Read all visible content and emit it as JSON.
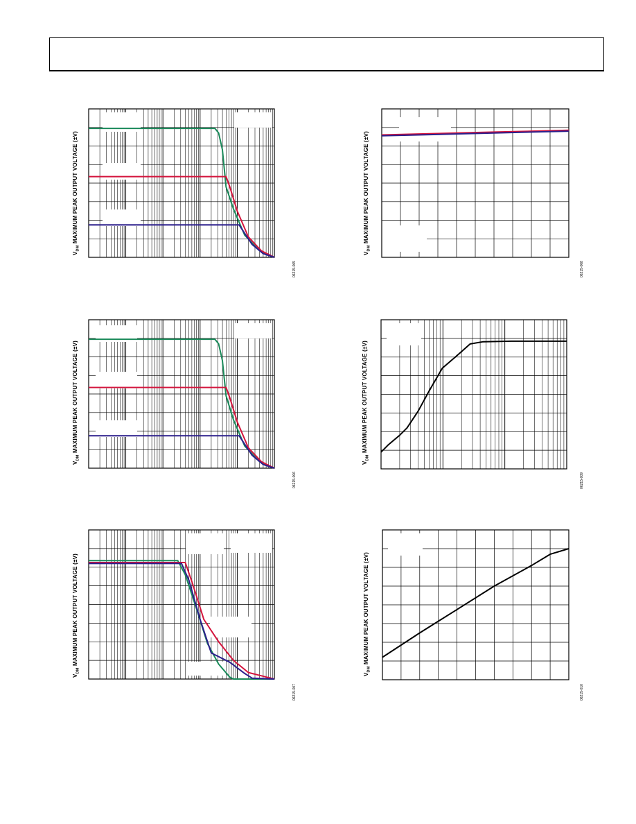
{
  "page": {
    "header_box": ""
  },
  "axis_label": {
    "sub": "DM",
    "rest": " MAXIMUM PEAK OUTPUT VOLTAGE (±V)",
    "prefix": "V"
  },
  "colors": {
    "green": "#1a8a5a",
    "red": "#d4143c",
    "blue": "#2c1f8c",
    "black": "#000000"
  },
  "figure_codes": [
    "06215-005",
    "06215-006",
    "06215-007",
    "06215-008",
    "06215-009",
    "06215-010"
  ],
  "chart_data": [
    {
      "type": "line",
      "scale_x": "log",
      "decades": 5,
      "ylabel": "VDM MAXIMUM PEAK OUTPUT VOLTAGE (±V)",
      "ylim": [
        0,
        8
      ],
      "series": [
        {
          "color": "green",
          "values": [
            [
              0.0,
              6.95
            ],
            [
              0.68,
              6.95
            ],
            [
              0.7,
              6.7
            ],
            [
              0.72,
              5.8
            ],
            [
              0.74,
              3.8
            ],
            [
              0.78,
              2.6
            ],
            [
              0.84,
              1.2
            ],
            [
              0.92,
              0.35
            ],
            [
              1.0,
              0.0
            ]
          ]
        },
        {
          "color": "red",
          "values": [
            [
              0.0,
              4.35
            ],
            [
              0.74,
              4.35
            ],
            [
              0.76,
              3.8
            ],
            [
              0.8,
              2.5
            ],
            [
              0.86,
              1.1
            ],
            [
              0.93,
              0.35
            ],
            [
              1.0,
              0.0
            ]
          ]
        },
        {
          "color": "blue",
          "values": [
            [
              0.0,
              1.75
            ],
            [
              0.81,
              1.75
            ],
            [
              0.83,
              1.45
            ],
            [
              0.88,
              0.7
            ],
            [
              0.94,
              0.2
            ],
            [
              1.0,
              0.0
            ]
          ]
        }
      ]
    },
    {
      "type": "line",
      "scale_x": "log",
      "decades": 5,
      "ylabel": "VDM MAXIMUM PEAK OUTPUT VOLTAGE (±V)",
      "ylim": [
        0,
        8
      ],
      "series": [
        {
          "color": "green",
          "values": [
            [
              0.0,
              6.95
            ],
            [
              0.68,
              6.95
            ],
            [
              0.7,
              6.7
            ],
            [
              0.72,
              5.8
            ],
            [
              0.74,
              3.9
            ],
            [
              0.78,
              2.6
            ],
            [
              0.84,
              1.2
            ],
            [
              0.92,
              0.35
            ],
            [
              1.0,
              0.0
            ]
          ]
        },
        {
          "color": "red",
          "values": [
            [
              0.0,
              4.35
            ],
            [
              0.74,
              4.35
            ],
            [
              0.76,
              3.8
            ],
            [
              0.8,
              2.5
            ],
            [
              0.86,
              1.1
            ],
            [
              0.93,
              0.35
            ],
            [
              1.0,
              0.0
            ]
          ]
        },
        {
          "color": "blue",
          "values": [
            [
              0.0,
              1.75
            ],
            [
              0.81,
              1.75
            ],
            [
              0.83,
              1.45
            ],
            [
              0.88,
              0.7
            ],
            [
              0.94,
              0.2
            ],
            [
              1.0,
              0.0
            ]
          ]
        }
      ]
    },
    {
      "type": "line",
      "scale_x": "log",
      "decades": 5,
      "ylabel": "VDM MAXIMUM PEAK OUTPUT VOLTAGE (±V)",
      "ylim": [
        0,
        8
      ],
      "series": [
        {
          "color": "green",
          "values": [
            [
              0.0,
              6.35
            ],
            [
              0.48,
              6.35
            ],
            [
              0.52,
              5.6
            ],
            [
              0.58,
              3.8
            ],
            [
              0.64,
              1.9
            ],
            [
              0.7,
              0.8
            ],
            [
              0.76,
              0.1
            ],
            [
              0.78,
              0.0
            ],
            [
              1.0,
              0.0
            ]
          ]
        },
        {
          "color": "red",
          "values": [
            [
              0.0,
              6.25
            ],
            [
              0.52,
              6.25
            ],
            [
              0.56,
              5.1
            ],
            [
              0.62,
              3.2
            ],
            [
              0.7,
              2.0
            ],
            [
              0.78,
              1.0
            ],
            [
              0.86,
              0.35
            ],
            [
              1.0,
              0.0
            ]
          ]
        },
        {
          "color": "blue",
          "values": [
            [
              0.0,
              6.2
            ],
            [
              0.5,
              6.2
            ],
            [
              0.54,
              5.3
            ],
            [
              0.6,
              3.2
            ],
            [
              0.66,
              1.4
            ],
            [
              0.76,
              0.9
            ],
            [
              0.84,
              0.3
            ],
            [
              0.88,
              0.05
            ],
            [
              1.0,
              0.0
            ]
          ]
        }
      ]
    },
    {
      "type": "line",
      "scale_x": "linear",
      "ylabel": "VDM MAXIMUM PEAK OUTPUT VOLTAGE (±V)",
      "ylim": [
        0,
        8
      ],
      "series": [
        {
          "color": "red",
          "values": [
            [
              0.0,
              6.6
            ],
            [
              0.2,
              6.65
            ],
            [
              0.4,
              6.7
            ],
            [
              0.6,
              6.75
            ],
            [
              0.8,
              6.8
            ],
            [
              1.0,
              6.85
            ]
          ]
        },
        {
          "color": "blue",
          "values": [
            [
              0.0,
              6.55
            ],
            [
              0.2,
              6.6
            ],
            [
              0.4,
              6.65
            ],
            [
              0.6,
              6.7
            ],
            [
              0.8,
              6.75
            ],
            [
              1.0,
              6.8
            ]
          ]
        }
      ]
    },
    {
      "type": "line",
      "scale_x": "log",
      "decades": 3,
      "ylabel": "VDM MAXIMUM PEAK OUTPUT VOLTAGE (±V)",
      "ylim": [
        0,
        8
      ],
      "series": [
        {
          "color": "black",
          "values": [
            [
              0.0,
              0.9
            ],
            [
              0.04,
              1.3
            ],
            [
              0.1,
              1.8
            ],
            [
              0.14,
              2.2
            ],
            [
              0.2,
              3.1
            ],
            [
              0.26,
              4.2
            ],
            [
              0.33,
              5.4
            ],
            [
              0.4,
              6.0
            ],
            [
              0.48,
              6.7
            ],
            [
              0.55,
              6.82
            ],
            [
              0.7,
              6.85
            ],
            [
              1.0,
              6.85
            ]
          ]
        }
      ]
    },
    {
      "type": "line",
      "scale_x": "linear",
      "ylabel": "VDM MAXIMUM PEAK OUTPUT VOLTAGE (±V)",
      "ylim": [
        0,
        8
      ],
      "series": [
        {
          "color": "black",
          "values": [
            [
              0.0,
              1.2
            ],
            [
              0.2,
              2.5
            ],
            [
              0.4,
              3.75
            ],
            [
              0.6,
              5.0
            ],
            [
              0.8,
              6.1
            ],
            [
              0.9,
              6.7
            ],
            [
              1.0,
              7.0
            ]
          ]
        }
      ]
    }
  ]
}
